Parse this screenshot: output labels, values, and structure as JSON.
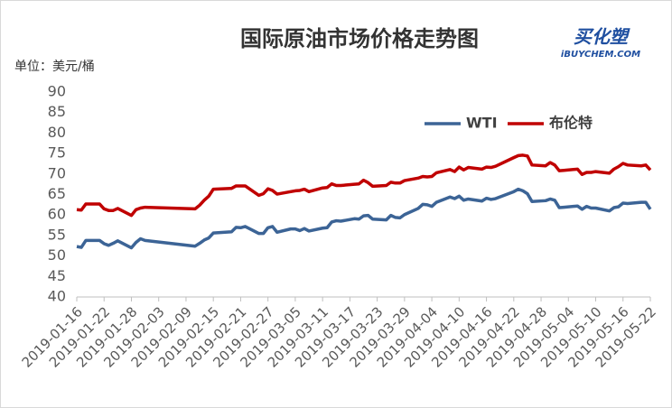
{
  "chart_data": {
    "type": "line",
    "title": "国际原油市场价格走势图",
    "y_label": "单位：美元/桶",
    "logo": {
      "text": "买化塑",
      "subtext": "iBUYCHEM.COM"
    },
    "x": [
      "2019-01-16",
      "2019-01-17",
      "2019-01-18",
      "2019-01-21",
      "2019-01-22",
      "2019-01-23",
      "2019-01-24",
      "2019-01-25",
      "2019-01-28",
      "2019-01-29",
      "2019-01-30",
      "2019-01-31",
      "2019-02-11",
      "2019-02-12",
      "2019-02-13",
      "2019-02-14",
      "2019-02-15",
      "2019-02-19",
      "2019-02-20",
      "2019-02-21",
      "2019-02-22",
      "2019-02-25",
      "2019-02-26",
      "2019-02-27",
      "2019-02-28",
      "2019-03-01",
      "2019-03-04",
      "2019-03-05",
      "2019-03-06",
      "2019-03-07",
      "2019-03-08",
      "2019-03-11",
      "2019-03-12",
      "2019-03-13",
      "2019-03-14",
      "2019-03-15",
      "2019-03-18",
      "2019-03-19",
      "2019-03-20",
      "2019-03-21",
      "2019-03-22",
      "2019-03-25",
      "2019-03-26",
      "2019-03-27",
      "2019-03-28",
      "2019-03-29",
      "2019-04-01",
      "2019-04-02",
      "2019-04-03",
      "2019-04-04",
      "2019-04-05",
      "2019-04-08",
      "2019-04-09",
      "2019-04-10",
      "2019-04-11",
      "2019-04-12",
      "2019-04-15",
      "2019-04-16",
      "2019-04-17",
      "2019-04-18",
      "2019-04-22",
      "2019-04-23",
      "2019-04-24",
      "2019-04-25",
      "2019-04-26",
      "2019-04-29",
      "2019-04-30",
      "2019-05-01",
      "2019-05-02",
      "2019-05-03",
      "2019-05-06",
      "2019-05-07",
      "2019-05-08",
      "2019-05-09",
      "2019-05-10",
      "2019-05-13",
      "2019-05-14",
      "2019-05-15",
      "2019-05-16",
      "2019-05-17",
      "2019-05-20",
      "2019-05-21",
      "2019-05-22"
    ],
    "series": [
      {
        "name": "WTI",
        "color": "#3c6496",
        "values": [
          52.3,
          52.1,
          53.8,
          53.8,
          53.0,
          52.6,
          53.1,
          53.7,
          52.0,
          53.3,
          54.2,
          53.8,
          52.4,
          53.1,
          53.9,
          54.4,
          55.6,
          55.9,
          57.0,
          56.9,
          57.2,
          55.5,
          55.5,
          56.9,
          57.2,
          55.8,
          56.6,
          56.6,
          56.2,
          56.7,
          56.1,
          56.8,
          56.9,
          58.3,
          58.6,
          58.5,
          59.1,
          59.0,
          59.8,
          59.9,
          59.0,
          58.8,
          59.9,
          59.4,
          59.3,
          60.1,
          61.6,
          62.6,
          62.5,
          62.1,
          63.1,
          64.4,
          64.0,
          64.6,
          63.6,
          63.9,
          63.4,
          64.1,
          63.8,
          64.0,
          65.7,
          66.3,
          65.9,
          65.2,
          63.3,
          63.5,
          63.9,
          63.6,
          61.8,
          61.9,
          62.2,
          61.4,
          62.1,
          61.7,
          61.7,
          61.0,
          61.8,
          62.0,
          62.9,
          62.8,
          63.1,
          63.1,
          61.4
        ]
      },
      {
        "name": "布伦特",
        "color": "#c00000",
        "values": [
          61.3,
          61.2,
          62.7,
          62.7,
          61.5,
          61.1,
          61.1,
          61.6,
          59.9,
          61.3,
          61.7,
          61.9,
          61.5,
          62.4,
          63.6,
          64.6,
          66.3,
          66.5,
          67.1,
          67.1,
          67.1,
          64.8,
          65.2,
          66.4,
          66.0,
          65.1,
          65.7,
          65.9,
          66.0,
          66.3,
          65.7,
          66.6,
          66.7,
          67.6,
          67.2,
          67.2,
          67.5,
          67.6,
          68.5,
          67.9,
          67.0,
          67.2,
          68.0,
          67.8,
          67.8,
          68.4,
          69.0,
          69.4,
          69.3,
          69.4,
          70.3,
          71.1,
          70.6,
          71.7,
          71.0,
          71.6,
          71.2,
          71.7,
          71.6,
          71.9,
          74.0,
          74.5,
          74.6,
          74.4,
          72.2,
          72.0,
          72.8,
          72.2,
          70.8,
          70.9,
          71.2,
          69.9,
          70.4,
          70.4,
          70.6,
          70.2,
          71.2,
          71.8,
          72.6,
          72.2,
          72.0,
          72.2,
          71.0
        ]
      }
    ],
    "xlim": [
      "2019-01-16",
      "2019-05-22"
    ],
    "xticks": [
      "2019-01-16",
      "2019-01-22",
      "2019-01-28",
      "2019-02-03",
      "2019-02-09",
      "2019-02-15",
      "2019-02-21",
      "2019-02-27",
      "2019-03-05",
      "2019-03-11",
      "2019-03-17",
      "2019-03-23",
      "2019-03-29",
      "2019-04-04",
      "2019-04-10",
      "2019-04-16",
      "2019-04-22",
      "2019-04-28",
      "2019-05-04",
      "2019-05-10",
      "2019-05-16",
      "2019-05-22"
    ],
    "ylim": [
      40,
      90
    ],
    "yticks": [
      40,
      45,
      50,
      55,
      60,
      65,
      70,
      75,
      80,
      85,
      90
    ],
    "grid": false,
    "legend": "top-right"
  }
}
